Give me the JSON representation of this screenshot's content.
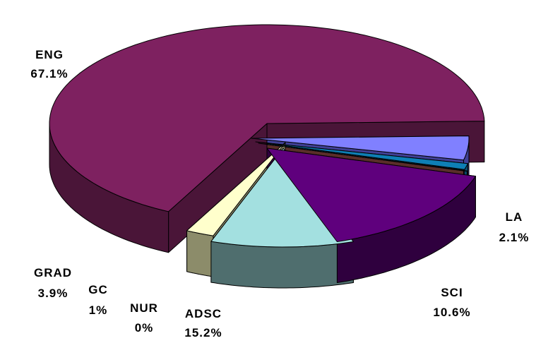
{
  "chart_data": {
    "type": "pie",
    "style": "3d-exploded",
    "slices": [
      {
        "label": "ENG",
        "percent_label": "67.1%",
        "value": 67.1,
        "color": "#7E2160",
        "side_color": "#4A1538"
      },
      {
        "label": "LA",
        "percent_label": "2.1%",
        "value": 2.1,
        "color": "#FFFFCC",
        "side_color": "#8C8C6A"
      },
      {
        "label": "SCI",
        "percent_label": "10.6%",
        "value": 10.6,
        "color": "#A3E0E0",
        "side_color": "#4F6E6E"
      },
      {
        "label": "ADSC",
        "percent_label": "15.2%",
        "value": 15.2,
        "color": "#5F007D",
        "side_color": "#2F003E"
      },
      {
        "label": "NUR",
        "percent_label": "0%",
        "value": 0.05,
        "color": "#8B4A42",
        "side_color": "#5A2E2A"
      },
      {
        "label": "GC",
        "percent_label": "1%",
        "value": 1.0,
        "color": "#0E7FB5",
        "side_color": "#094E70"
      },
      {
        "label": "GRAD",
        "percent_label": "3.9%",
        "value": 3.9,
        "color": "#8080FF",
        "side_color": "#404095"
      }
    ]
  }
}
